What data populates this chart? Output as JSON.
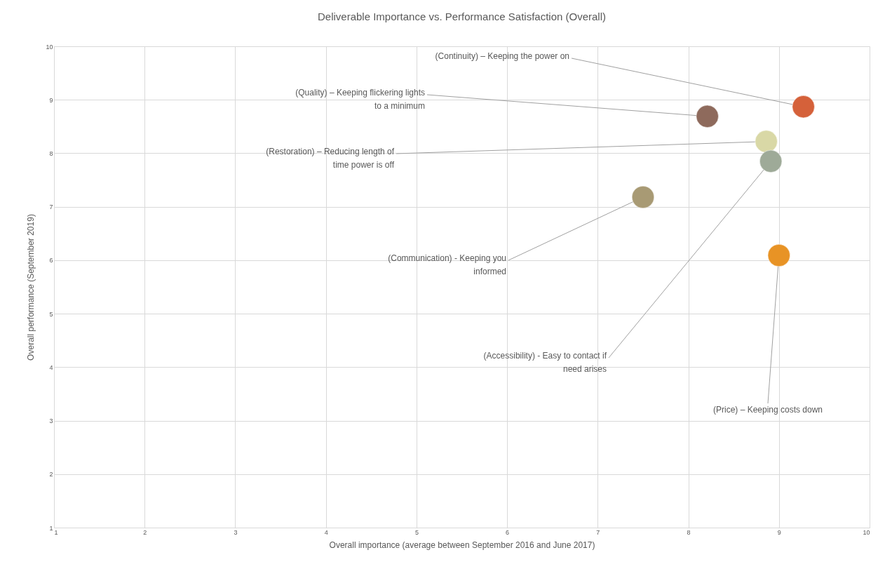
{
  "chart_data": {
    "type": "scatter",
    "title": "Deliverable Importance vs. Performance Satisfaction (Overall)",
    "xlabel": "Overall importance (average between September 2016 and June 2017)",
    "ylabel": "Overall performance (September 2019)",
    "x": [
      9.27,
      8.21,
      8.86,
      7.5,
      8.91,
      9.0
    ],
    "values": [
      8.87,
      8.69,
      8.22,
      7.18,
      7.85,
      6.09
    ],
    "colors": [
      "#d5613a",
      "#8e6a5c",
      "#d9d8a6",
      "#a89a74",
      "#9eaa98",
      "#e89325"
    ],
    "marker": "circle",
    "xlim": [
      1,
      10
    ],
    "ylim": [
      1,
      10
    ],
    "xticks": [
      1,
      2,
      3,
      4,
      5,
      6,
      7,
      8,
      9,
      10
    ],
    "yticks": [
      1,
      2,
      3,
      4,
      5,
      6,
      7,
      8,
      9,
      10
    ],
    "grid": true,
    "annotations": [
      {
        "text": "(Continuity)  – Keeping the power on",
        "x": 9.27,
        "y": 8.87
      },
      {
        "text": "(Quality)  – Keeping flickering lights to a minimum",
        "x": 8.21,
        "y": 8.69
      },
      {
        "text": "(Restoration) – Reducing length of time power is off",
        "x": 8.86,
        "y": 8.22
      },
      {
        "text": "(Communication)  - Keeping you informed",
        "x": 7.5,
        "y": 7.18
      },
      {
        "text": "(Accessibility)  - Easy to contact if need arises",
        "x": 8.91,
        "y": 7.85
      },
      {
        "text": "(Price) – Keeping costs down",
        "x": 9.0,
        "y": 6.09
      }
    ]
  }
}
